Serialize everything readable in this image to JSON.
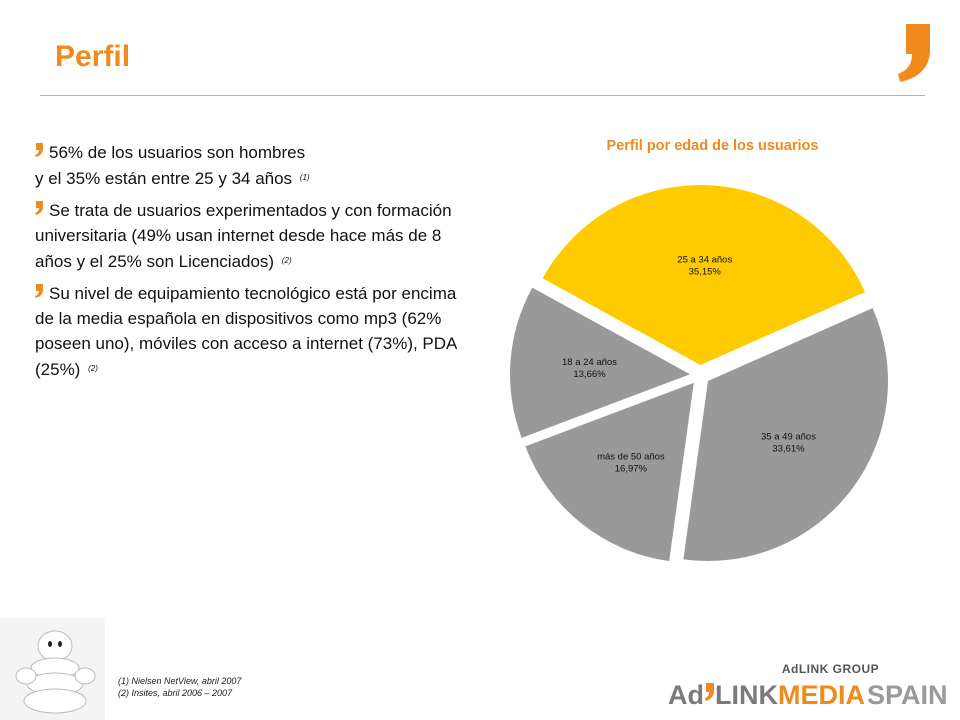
{
  "page": {
    "title": "Perfil",
    "colors": {
      "accent": "#f08a1c",
      "slice_highlight": "#fecb00",
      "slice_default": "#999999"
    }
  },
  "bullets": [
    {
      "lines": [
        "56% de los usuarios son hombres",
        "y el 35% están entre 25 y 34 años"
      ],
      "ref": "(1)"
    },
    {
      "text": "Se trata de usuarios experimentados y con formación universitaria (49% usan internet desde hace más de 8 años y el 25% son Licenciados)",
      "ref": "(2)"
    },
    {
      "text": "Su nivel de equipamiento tecnológico está por encima de la media española en dispositivos como mp3 (62% poseen uno), móviles con acceso a internet (73%), PDA (25%)",
      "ref": "(2)"
    }
  ],
  "chart_data": {
    "type": "pie",
    "title": "Perfil por edad de los usuarios",
    "exploded": true,
    "slices": [
      {
        "label": "25 a 34 años",
        "value": 35.15,
        "display": "35,15%",
        "color": "#fecb00"
      },
      {
        "label": "35 a 49 años",
        "value": 33.61,
        "display": "33,61%",
        "color": "#999999"
      },
      {
        "label": "más de 50 años",
        "value": 16.97,
        "display": "16,97%",
        "color": "#999999"
      },
      {
        "label": "18 a 24 años",
        "value": 13.66,
        "display": "13,66%",
        "color": "#999999"
      }
    ]
  },
  "footnotes": [
    "(1) Nielsen NetView, abril 2007",
    "(2) Insites, abril 2006 – 2007"
  ],
  "brand": {
    "group": "AdLINK GROUP",
    "ad": "Ad",
    "link": "LINK",
    "media": "MEDIA",
    "spain": "SPAIN"
  }
}
